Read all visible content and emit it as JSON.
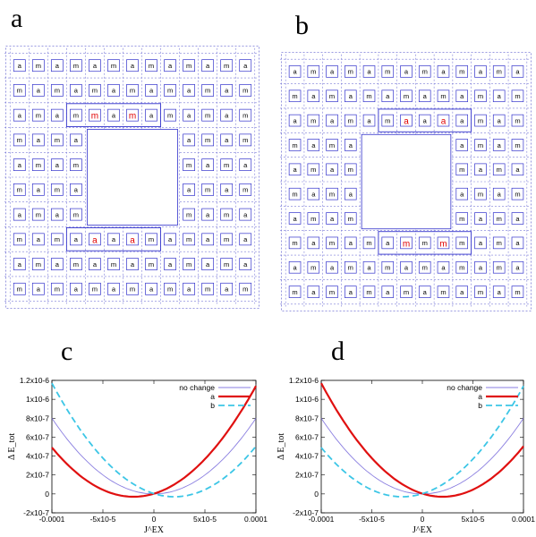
{
  "panels": {
    "a": {
      "letter": "a"
    },
    "b": {
      "letter": "b"
    },
    "c": {
      "letter": "c"
    },
    "d": {
      "letter": "d"
    }
  },
  "colors": {
    "grid_dash": "#7a7ad8",
    "grid_solid": "#3333cc",
    "cell_text": "#000000",
    "highlight_text": "#e00000",
    "series_no_change": "#8a7ee0",
    "series_a": "#e01010",
    "series_b": "#3cc6e6"
  },
  "lattice": {
    "a": {
      "rows": [
        [
          "a",
          "m",
          "a",
          "m",
          "a",
          "m",
          "a",
          "m",
          "a",
          "m",
          "a",
          "m",
          "a"
        ],
        [
          "m",
          "a",
          "m",
          "a",
          "m",
          "a",
          "m",
          "a",
          "m",
          "a",
          "m",
          "a",
          "m"
        ],
        [
          "a",
          "m",
          "a",
          "m",
          "m",
          "a",
          "m",
          "a",
          "m",
          "a",
          "m",
          "a",
          "m"
        ],
        [
          "m",
          "a",
          "m",
          "a",
          "",
          "",
          "",
          "",
          "",
          "a",
          "m",
          "a",
          "m"
        ],
        [
          "a",
          "m",
          "a",
          "m",
          "",
          "",
          "",
          "",
          "",
          "m",
          "a",
          "m",
          "a"
        ],
        [
          "m",
          "a",
          "m",
          "a",
          "",
          "",
          "",
          "",
          "",
          "a",
          "m",
          "a",
          "m"
        ],
        [
          "a",
          "m",
          "a",
          "m",
          "",
          "",
          "",
          "",
          "",
          "m",
          "a",
          "m",
          "a"
        ],
        [
          "m",
          "a",
          "m",
          "a",
          "a",
          "a",
          "a",
          "m",
          "a",
          "m",
          "a",
          "m",
          "a"
        ],
        [
          "a",
          "m",
          "a",
          "m",
          "a",
          "m",
          "a",
          "m",
          "a",
          "m",
          "a",
          "m",
          "a"
        ],
        [
          "m",
          "a",
          "m",
          "a",
          "m",
          "a",
          "m",
          "a",
          "m",
          "a",
          "m",
          "a",
          "m"
        ]
      ],
      "highlight": [
        [
          2,
          4
        ],
        [
          2,
          6
        ],
        [
          7,
          4
        ],
        [
          7,
          6
        ]
      ]
    },
    "b": {
      "rows": [
        [
          "a",
          "m",
          "a",
          "m",
          "a",
          "m",
          "a",
          "m",
          "a",
          "m",
          "a",
          "m",
          "a"
        ],
        [
          "m",
          "a",
          "m",
          "a",
          "m",
          "a",
          "m",
          "a",
          "m",
          "a",
          "m",
          "a",
          "m"
        ],
        [
          "a",
          "m",
          "a",
          "m",
          "a",
          "m",
          "a",
          "a",
          "a",
          "a",
          "m",
          "a",
          "m"
        ],
        [
          "m",
          "a",
          "m",
          "a",
          "",
          "",
          "",
          "",
          "",
          "a",
          "m",
          "a",
          "m"
        ],
        [
          "a",
          "m",
          "a",
          "m",
          "",
          "",
          "",
          "",
          "",
          "m",
          "a",
          "m",
          "a"
        ],
        [
          "m",
          "a",
          "m",
          "a",
          "",
          "",
          "",
          "",
          "",
          "a",
          "m",
          "a",
          "m"
        ],
        [
          "a",
          "m",
          "a",
          "m",
          "",
          "",
          "",
          "",
          "",
          "m",
          "a",
          "m",
          "a"
        ],
        [
          "m",
          "a",
          "m",
          "a",
          "m",
          "a",
          "m",
          "m",
          "m",
          "m",
          "a",
          "m",
          "a"
        ],
        [
          "a",
          "m",
          "a",
          "m",
          "a",
          "m",
          "a",
          "m",
          "a",
          "m",
          "a",
          "m",
          "a"
        ],
        [
          "m",
          "a",
          "m",
          "a",
          "m",
          "a",
          "m",
          "a",
          "m",
          "a",
          "m",
          "a",
          "m"
        ]
      ],
      "highlight": [
        [
          2,
          6
        ],
        [
          2,
          8
        ],
        [
          7,
          6
        ],
        [
          7,
          8
        ]
      ]
    }
  },
  "chart_data": [
    {
      "panel": "c",
      "type": "line",
      "ylabel": "Δ E_tot",
      "xlabel": "J^EX",
      "xlim": [
        -0.0001,
        0.0001
      ],
      "ylim": [
        -2e-07,
        1.2e-06
      ],
      "x_ticks": [
        "-0.0001",
        "-5x10-5",
        "0",
        "5x10-5",
        "0.0001"
      ],
      "x_tick_values": [
        -0.0001,
        -5e-05,
        0,
        5e-05,
        0.0001
      ],
      "y_ticks": [
        "-2x10-7",
        "0",
        "2x10-7",
        "4x10-7",
        "6x10-7",
        "8x10-7",
        "1x10-6",
        "1.2x10-6"
      ],
      "y_tick_values": [
        -2e-07,
        0,
        2e-07,
        4e-07,
        6e-07,
        8e-07,
        1e-06,
        1.2e-06
      ],
      "legend_position": "top-right",
      "series": [
        {
          "name": "no change",
          "style": "solid-thin",
          "vertex_x": 0,
          "vertex_y": 0,
          "x": [
            -0.0001,
            -5e-05,
            0,
            5e-05,
            0.0001
          ],
          "y": [
            8e-07,
            2e-07,
            0,
            2e-07,
            8e-07
          ]
        },
        {
          "name": "a",
          "style": "solid-thick",
          "vertex_x": -2e-05,
          "vertex_y": -3e-08,
          "x": [
            -0.0001,
            -5e-05,
            -2e-05,
            0,
            5e-05,
            0.0001
          ],
          "y": [
            4.9e-07,
            7e-08,
            -3e-08,
            0,
            3.8e-07,
            1.17e-06
          ]
        },
        {
          "name": "b",
          "style": "dashed",
          "vertex_x": 2e-05,
          "vertex_y": -3e-08,
          "x": [
            -0.0001,
            -5e-05,
            0,
            2e-05,
            5e-05,
            0.0001
          ],
          "y": [
            1.17e-06,
            3.8e-07,
            0,
            -3e-08,
            7e-08,
            4.9e-07
          ]
        }
      ]
    },
    {
      "panel": "d",
      "type": "line",
      "ylabel": "Δ E_tot",
      "xlabel": "J^EX",
      "xlim": [
        -0.0001,
        0.0001
      ],
      "ylim": [
        -2e-07,
        1.2e-06
      ],
      "x_ticks": [
        "-0.0001",
        "-5x10-5",
        "0",
        "5x10-5",
        "0.0001"
      ],
      "x_tick_values": [
        -0.0001,
        -5e-05,
        0,
        5e-05,
        0.0001
      ],
      "y_ticks": [
        "-2x10-7",
        "0",
        "2x10-7",
        "4x10-7",
        "6x10-7",
        "8x10-7",
        "1x10-6",
        "1.2x10-6"
      ],
      "y_tick_values": [
        -2e-07,
        0,
        2e-07,
        4e-07,
        6e-07,
        8e-07,
        1e-06,
        1.2e-06
      ],
      "legend_position": "top-right",
      "series": [
        {
          "name": "no change",
          "style": "solid-thin",
          "vertex_x": 0,
          "vertex_y": 0,
          "x": [
            -0.0001,
            -5e-05,
            0,
            5e-05,
            0.0001
          ],
          "y": [
            8e-07,
            2e-07,
            0,
            2e-07,
            8e-07
          ]
        },
        {
          "name": "a",
          "style": "solid-thick",
          "vertex_x": 2e-05,
          "vertex_y": -3e-08,
          "x": [
            -0.0001,
            -5e-05,
            0,
            2e-05,
            5e-05,
            0.0001
          ],
          "y": [
            1.17e-06,
            3.8e-07,
            0,
            -3e-08,
            7e-08,
            4.9e-07
          ]
        },
        {
          "name": "b",
          "style": "dashed",
          "vertex_x": -2e-05,
          "vertex_y": -3e-08,
          "x": [
            -0.0001,
            -5e-05,
            -2e-05,
            0,
            5e-05,
            0.0001
          ],
          "y": [
            4.9e-07,
            7e-08,
            -3e-08,
            0,
            3.8e-07,
            1.17e-06
          ]
        }
      ]
    }
  ]
}
